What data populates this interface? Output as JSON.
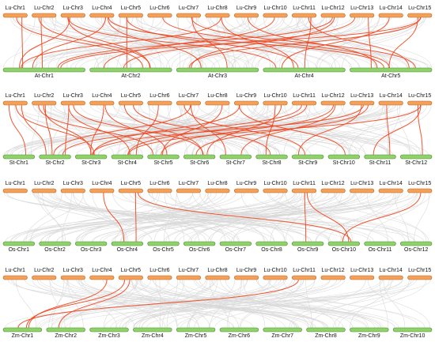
{
  "panels": [
    {
      "top_chromosomes": [
        "Lu-Chr1",
        "Lu-Chr2",
        "Lu-Chr3",
        "Lu-Chr4",
        "Lu-Chr5",
        "Lu-Chr6",
        "Lu-Chr7",
        "Lu-Chr8",
        "Lu-Chr9",
        "Lu-Chr10",
        "Lu-Chr11",
        "Lu-Chr12",
        "Lu-Chr13",
        "Lu-Chr14",
        "Lu-Chr15"
      ],
      "bottom_chromosomes": [
        "At-Chr1",
        "At-Chr2",
        "At-Chr3",
        "At-Chr4",
        "At-Chr5"
      ],
      "red_links": [
        [
          0,
          0
        ],
        [
          0,
          1
        ],
        [
          1,
          0
        ],
        [
          1,
          1
        ],
        [
          2,
          0
        ],
        [
          2,
          1
        ],
        [
          2,
          3
        ],
        [
          3,
          0
        ],
        [
          3,
          2
        ],
        [
          3,
          4
        ],
        [
          4,
          1
        ],
        [
          4,
          3
        ],
        [
          5,
          4
        ],
        [
          6,
          2
        ],
        [
          6,
          4
        ],
        [
          7,
          3
        ],
        [
          7,
          0
        ],
        [
          8,
          4
        ],
        [
          9,
          1
        ],
        [
          10,
          3
        ],
        [
          10,
          4
        ],
        [
          11,
          0
        ],
        [
          11,
          2
        ],
        [
          12,
          4
        ],
        [
          12,
          1
        ],
        [
          13,
          3
        ],
        [
          14,
          4
        ],
        [
          14,
          0
        ],
        [
          14,
          2
        ]
      ]
    },
    {
      "top_chromosomes": [
        "Lu-Chr1",
        "Lu-Chr2",
        "Lu-Chr3",
        "Lu-Chr4",
        "Lu-Chr5",
        "Lu-Chr6",
        "Lu-Chr7",
        "Lu-Chr8",
        "Lu-Chr9",
        "Lu-Chr10",
        "Lu-Chr11",
        "Lu-Chr12",
        "Lu-Chr13",
        "Lu-Chr14",
        "Lu-Chr15"
      ],
      "bottom_chromosomes": [
        "St-Chr1",
        "St-Chr2",
        "St-Chr3",
        "St-Chr4",
        "St-Chr5",
        "St-Chr6",
        "St-Chr7",
        "St-Chr8",
        "St-Chr9",
        "St-Chr10",
        "St-Chr11",
        "St-Chr12"
      ],
      "red_links": [
        [
          0,
          0
        ],
        [
          0,
          1
        ],
        [
          0,
          2
        ],
        [
          1,
          1
        ],
        [
          1,
          2
        ],
        [
          1,
          4
        ],
        [
          2,
          1
        ],
        [
          2,
          3
        ],
        [
          2,
          5
        ],
        [
          3,
          2
        ],
        [
          3,
          4
        ],
        [
          4,
          5
        ],
        [
          4,
          7
        ],
        [
          5,
          3
        ],
        [
          6,
          1
        ],
        [
          6,
          6
        ],
        [
          6,
          8
        ],
        [
          7,
          4
        ],
        [
          8,
          2
        ],
        [
          8,
          9
        ],
        [
          9,
          5
        ],
        [
          9,
          7
        ],
        [
          10,
          1
        ],
        [
          10,
          3
        ],
        [
          11,
          4
        ],
        [
          11,
          6
        ],
        [
          12,
          2
        ],
        [
          12,
          8
        ],
        [
          12,
          5
        ],
        [
          13,
          10
        ],
        [
          14,
          10
        ],
        [
          14,
          11
        ],
        [
          14,
          3
        ]
      ]
    },
    {
      "top_chromosomes": [
        "Lu-Chr1",
        "Lu-Chr2",
        "Lu-Chr3",
        "Lu-Chr4",
        "Lu-Chr5",
        "Lu-Chr6",
        "Lu-Chr7",
        "Lu-Chr8",
        "Lu-Chr9",
        "Lu-Chr10",
        "Lu-Chr11",
        "Lu-Chr12",
        "Lu-Chr13",
        "Lu-Chr14",
        "Lu-Chr15"
      ],
      "bottom_chromosomes": [
        "Os-Chr1",
        "Os-Chr2",
        "Os-Chr3",
        "Os-Chr4",
        "Os-Chr5",
        "Os-Chr6",
        "Os-Chr7",
        "Os-Chr8",
        "Os-Chr9",
        "Os-Chr10",
        "Os-Chr11",
        "Os-Chr12"
      ],
      "red_links": [
        [
          3,
          3
        ],
        [
          4,
          3
        ],
        [
          4,
          9
        ],
        [
          10,
          9
        ],
        [
          10,
          8
        ],
        [
          14,
          9
        ]
      ]
    },
    {
      "top_chromosomes": [
        "Lu-Chr1",
        "Lu-Chr2",
        "Lu-Chr3",
        "Lu-Chr4",
        "Lu-Chr5",
        "Lu-Chr6",
        "Lu-Chr7",
        "Lu-Chr8",
        "Lu-Chr9",
        "Lu-Chr10",
        "Lu-Chr11",
        "Lu-Chr12",
        "Lu-Chr13",
        "Lu-Chr14",
        "Lu-Chr15"
      ],
      "bottom_chromosomes": [
        "Zm-Chr1",
        "Zm-Chr2",
        "Zm-Chr3",
        "Zm-Chr4",
        "Zm-Chr5",
        "Zm-Chr6",
        "Zm-Chr7",
        "Zm-Chr8",
        "Zm-Chr9",
        "Zm-Chr10"
      ],
      "red_links": [
        [
          3,
          0
        ],
        [
          4,
          0
        ],
        [
          4,
          1
        ],
        [
          10,
          0
        ]
      ]
    }
  ],
  "colors": {
    "lu_fill": "#f2a05a",
    "lu_stroke": "#b86b22",
    "other_fill": "#8fd16a",
    "other_stroke": "#4e8f2e",
    "background_links": "#d8d8d8",
    "highlight_links": "#f0441c"
  }
}
